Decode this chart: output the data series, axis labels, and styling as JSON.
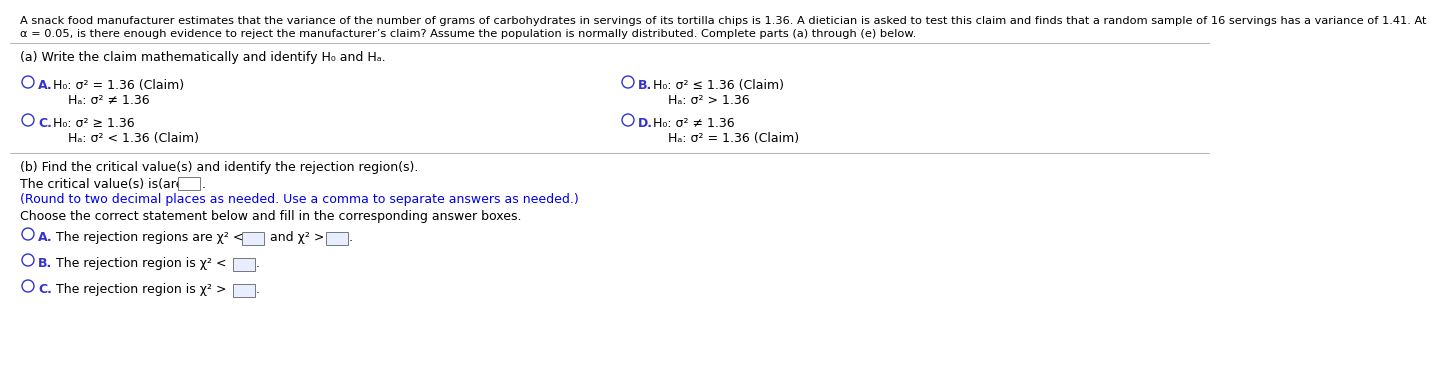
{
  "bg_color": "#ffffff",
  "text_color": "#000000",
  "blue_color": "#0000EE",
  "option_color": "#3333CC",
  "header_line1": "A snack food manufacturer estimates that the variance of the number of grams of carbohydrates in servings of its tortilla chips is 1.36. A dietician is asked to test this claim and finds that a random sample of 16 servings has a variance of 1.41. At",
  "header_line2": "α = 0.05, is there enough evidence to reject the manufacturer’s claim? Assume the population is normally distributed. Complete parts (a) through (e) below.",
  "part_a_label": "(a) Write the claim mathematically and identify H₀ and Hₐ.",
  "part_b_label": "(b) Find the critical value(s) and identify the rejection region(s).",
  "critical_text": "The critical value(s) is(are)",
  "round_note": "(Round to two decimal places as needed. Use a comma to separate answers as needed.)",
  "choose_text": "Choose the correct statement below and fill in the corresponding answer boxes.",
  "option_A_left_line1": "H₀: σ² = 1.36 (Claim)",
  "option_A_left_line2": "Hₐ: σ² ≠ 1.36",
  "option_C_left_line1": "H₀: σ² ≥ 1.36",
  "option_C_left_line2": "Hₐ: σ² < 1.36 (Claim)",
  "option_B_right_line1": "H₀: σ² ≤ 1.36 (Claim)",
  "option_B_right_line2": "Hₐ: σ² > 1.36",
  "option_D_right_line1": "H₀: σ² ≠ 1.36",
  "option_D_right_line2": "Hₐ: σ² = 1.36 (Claim)",
  "rej_A_prefix": "The rejection regions are χ² < ",
  "rej_A_middle": " and χ² > ",
  "rej_B_prefix": "The rejection region is χ² < ",
  "rej_C_prefix": "The rejection region is χ² > "
}
